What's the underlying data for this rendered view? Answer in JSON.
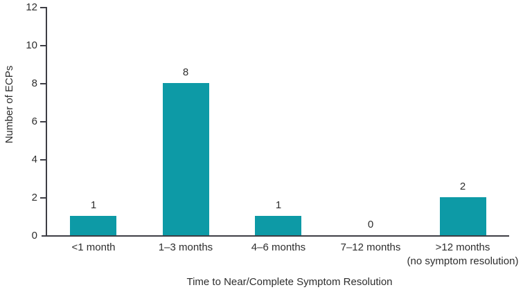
{
  "chart_data": {
    "type": "bar",
    "title": "",
    "categories": [
      "<1 month",
      "1–3 months",
      "4–6 months",
      "7–12 months",
      ">12 months\n(no symptom resolution)"
    ],
    "values": [
      1,
      8,
      1,
      0,
      2
    ],
    "data_labels": [
      "1",
      "8",
      "1",
      "0",
      "2"
    ],
    "xlabel": "Time to Near/Complete Symptom Resolution",
    "ylabel": "Number of ECPs",
    "ylim": [
      0,
      12
    ],
    "yticks": [
      0,
      2,
      4,
      6,
      8,
      10,
      12
    ],
    "grid": false,
    "legend_position": "none",
    "bar_color": "#0D9AA6",
    "axis_color": "#3d3d44",
    "text_color": "#2d2d2d"
  }
}
